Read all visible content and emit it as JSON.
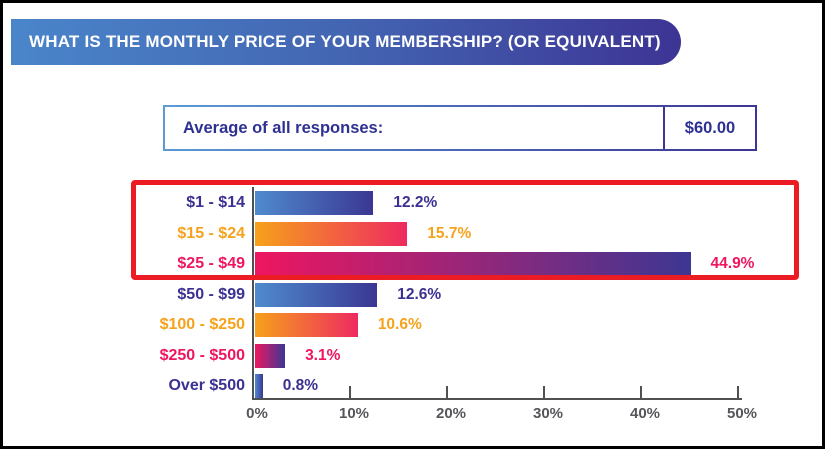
{
  "window": {
    "background": "#ffffff",
    "frame_border_color": "#000000"
  },
  "header": {
    "title": "WHAT IS THE MONTHLY PRICE OF YOUR MEMBERSHIP? (OR EQUIVALENT)",
    "text_color": "#ffffff",
    "gradient_start": "#4a85ca",
    "gradient_mid": "#4365b2",
    "gradient_end": "#3d3494"
  },
  "average_box": {
    "label": "Average of all responses:",
    "value": "$60.00",
    "text_color": "#2e3192",
    "border_gradient_start": "#5b9bd5",
    "border_gradient_end": "#3d3494"
  },
  "chart_data": {
    "type": "bar",
    "orientation": "horizontal",
    "title": "",
    "xlabel": "",
    "ylabel": "",
    "categories": [
      "$1 - $14",
      "$15 - $24",
      "$25 - $49",
      "$50 - $99",
      "$100 - $250",
      "$250 - $500",
      "Over $500"
    ],
    "values": [
      12.2,
      15.7,
      44.9,
      12.6,
      10.6,
      3.1,
      0.8
    ],
    "value_labels": [
      "12.2%",
      "15.7%",
      "44.9%",
      "12.6%",
      "10.6%",
      "3.1%",
      "0.8%"
    ],
    "x_tick_labels": [
      "0%",
      "10%",
      "20%",
      "30%",
      "40%",
      "50%"
    ],
    "xlim": [
      0,
      50
    ],
    "grid": false,
    "legend": false,
    "axis_color": "#55565a",
    "series_styles": [
      "blue",
      "orange",
      "pink",
      "blue",
      "orange",
      "pink",
      "blue"
    ],
    "bar_gradients": {
      "blue": [
        "#4f8bce",
        "#3a3793"
      ],
      "orange": [
        "#f6a11b",
        "#ee2a60"
      ],
      "pink": [
        "#ee1660",
        "#3c3793"
      ]
    },
    "label_colors": {
      "blue": "#3b3193",
      "orange": "#f6a21c",
      "pink": "#ee1660"
    },
    "highlight": {
      "row_indexes": [
        0,
        1,
        2
      ],
      "rows": [
        "$1 - $14",
        "$15 - $24",
        "$25 - $49"
      ],
      "color": "#ec1c24"
    }
  }
}
